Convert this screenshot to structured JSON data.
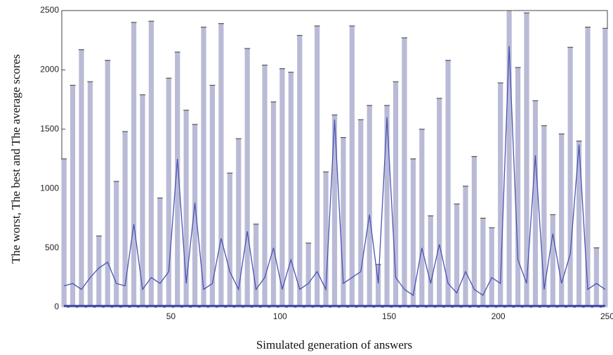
{
  "chart_data": {
    "type": "line",
    "x_label": "Simulated generation of answers",
    "y_label": "The worst, The best and The average scores",
    "x": [
      1,
      5,
      9,
      13,
      17,
      21,
      25,
      29,
      33,
      37,
      41,
      45,
      49,
      53,
      57,
      61,
      65,
      69,
      73,
      77,
      81,
      85,
      89,
      93,
      97,
      101,
      105,
      109,
      113,
      117,
      121,
      125,
      129,
      133,
      137,
      141,
      145,
      149,
      153,
      157,
      161,
      165,
      169,
      173,
      177,
      181,
      185,
      189,
      193,
      197,
      201,
      205,
      209,
      213,
      217,
      221,
      225,
      229,
      233,
      237,
      241,
      245,
      249
    ],
    "series": [
      {
        "style": "range",
        "color": "#b9bbd6",
        "values": [
          1250,
          1870,
          2170,
          1900,
          600,
          2080,
          1060,
          1480,
          2400,
          1790,
          2410,
          920,
          1930,
          2150,
          1660,
          1540,
          2360,
          1870,
          2390,
          1130,
          1420,
          2180,
          700,
          2040,
          1730,
          2010,
          1980,
          2290,
          540,
          2370,
          1140,
          1620,
          1430,
          2370,
          1580,
          1700,
          360,
          1700,
          1900,
          2270,
          1250,
          1500,
          770,
          1760,
          2080,
          870,
          1020,
          1270,
          750,
          670,
          1890,
          2500,
          2020,
          2480,
          1740,
          1530,
          780,
          1460,
          2190,
          1400,
          2360,
          500,
          2350
        ]
      },
      {
        "style": "line",
        "color": "#3a44a8",
        "values": [
          10,
          10,
          10,
          10,
          10,
          10,
          10,
          10,
          10,
          10,
          10,
          10,
          10,
          10,
          10,
          10,
          10,
          10,
          10,
          10,
          10,
          10,
          10,
          10,
          10,
          10,
          10,
          10,
          10,
          10,
          10,
          10,
          10,
          10,
          10,
          10,
          10,
          10,
          10,
          10,
          10,
          10,
          10,
          10,
          10,
          10,
          10,
          10,
          10,
          10,
          10,
          10,
          10,
          10,
          10,
          10,
          10,
          10,
          10,
          10,
          10,
          10,
          10
        ]
      },
      {
        "style": "line",
        "color": "#4a52b4",
        "values": [
          180,
          200,
          150,
          250,
          330,
          380,
          200,
          180,
          700,
          150,
          250,
          200,
          300,
          1250,
          200,
          880,
          150,
          200,
          580,
          300,
          150,
          640,
          150,
          250,
          500,
          150,
          400,
          150,
          200,
          300,
          150,
          1580,
          200,
          250,
          300,
          780,
          200,
          1600,
          250,
          150,
          100,
          500,
          200,
          530,
          200,
          120,
          300,
          150,
          100,
          250,
          200,
          2200,
          400,
          200,
          1280,
          150,
          620,
          200,
          450,
          1370,
          150,
          200,
          150
        ]
      }
    ],
    "xlim": [
      0,
      250
    ],
    "xticks": [
      50,
      100,
      150,
      200,
      250
    ],
    "ylim": [
      0,
      2500
    ],
    "yticks": [
      0,
      500,
      1000,
      1500,
      2000,
      2500
    ]
  }
}
